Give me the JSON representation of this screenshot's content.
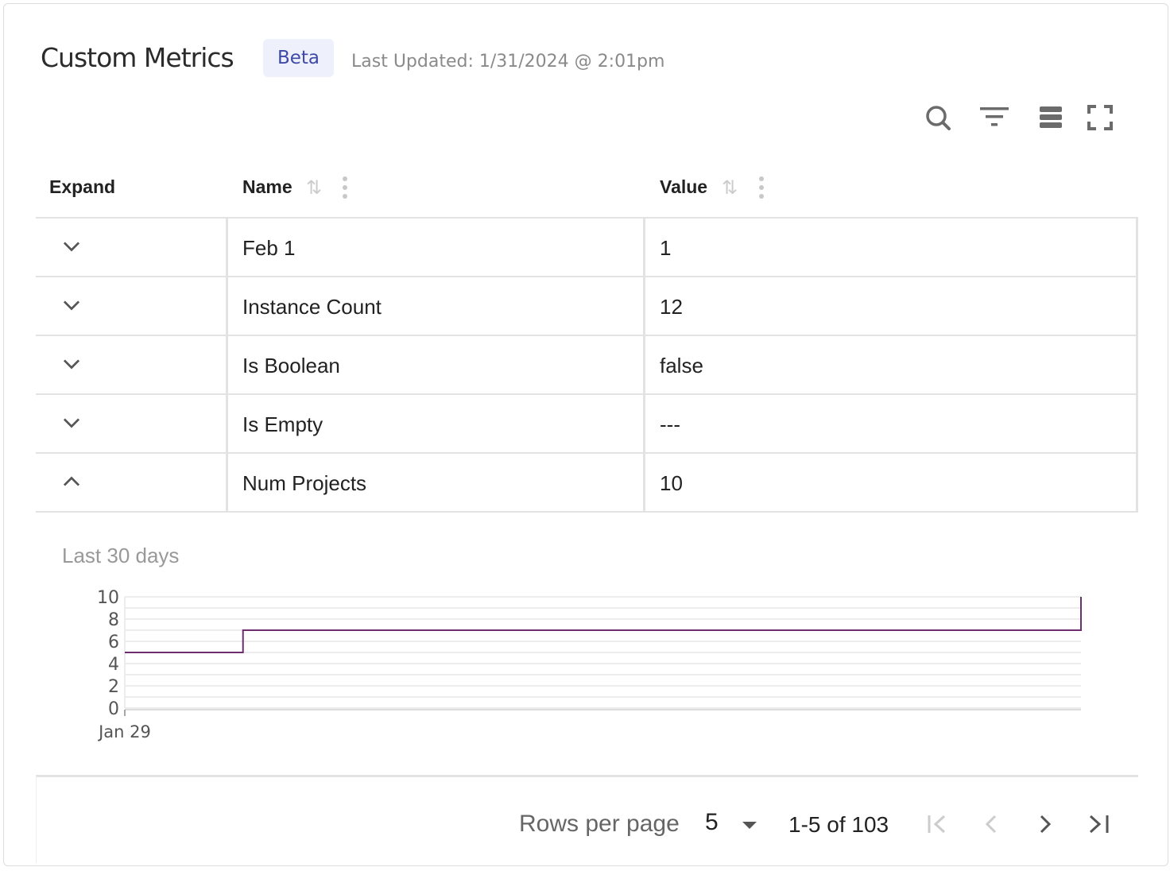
{
  "header": {
    "title": "Custom Metrics",
    "badge": "Beta",
    "last_updated": "Last Updated: 1/31/2024 @ 2:01pm"
  },
  "toolbar": {
    "icons": [
      "search-icon",
      "filter-icon",
      "density-icon",
      "fullscreen-icon"
    ]
  },
  "table": {
    "columns": [
      {
        "label": "Expand"
      },
      {
        "label": "Name"
      },
      {
        "label": "Value"
      }
    ],
    "rows": [
      {
        "name": "Feb 1",
        "value": "1",
        "expanded": false
      },
      {
        "name": "Instance Count",
        "value": "12",
        "expanded": false
      },
      {
        "name": "Is Boolean",
        "value": "false",
        "expanded": false
      },
      {
        "name": "Is Empty",
        "value": "---",
        "expanded": false
      },
      {
        "name": "Num Projects",
        "value": "10",
        "expanded": true
      }
    ]
  },
  "expanded_panel": {
    "label": "Last 30 days"
  },
  "chart_data": {
    "type": "line",
    "step": true,
    "color": "#6e2d6e",
    "ylim": [
      0,
      10
    ],
    "yticks": [
      "0",
      "2",
      "4",
      "6",
      "8",
      "10"
    ],
    "xticks": [
      "Jan 29"
    ],
    "xlim": [
      "2024-01-29T00:00",
      "2024-01-31T14:01"
    ],
    "grid": true,
    "points": [
      {
        "x": "2024-01-29T00:00",
        "y": 5
      },
      {
        "x": "2024-01-29T07:40",
        "y": 7
      },
      {
        "x": "2024-01-31T14:01",
        "y": 10
      }
    ]
  },
  "pagination": {
    "rows_per_page_label": "Rows per page",
    "rows_per_page": "5",
    "range": "1-5 of 103"
  }
}
